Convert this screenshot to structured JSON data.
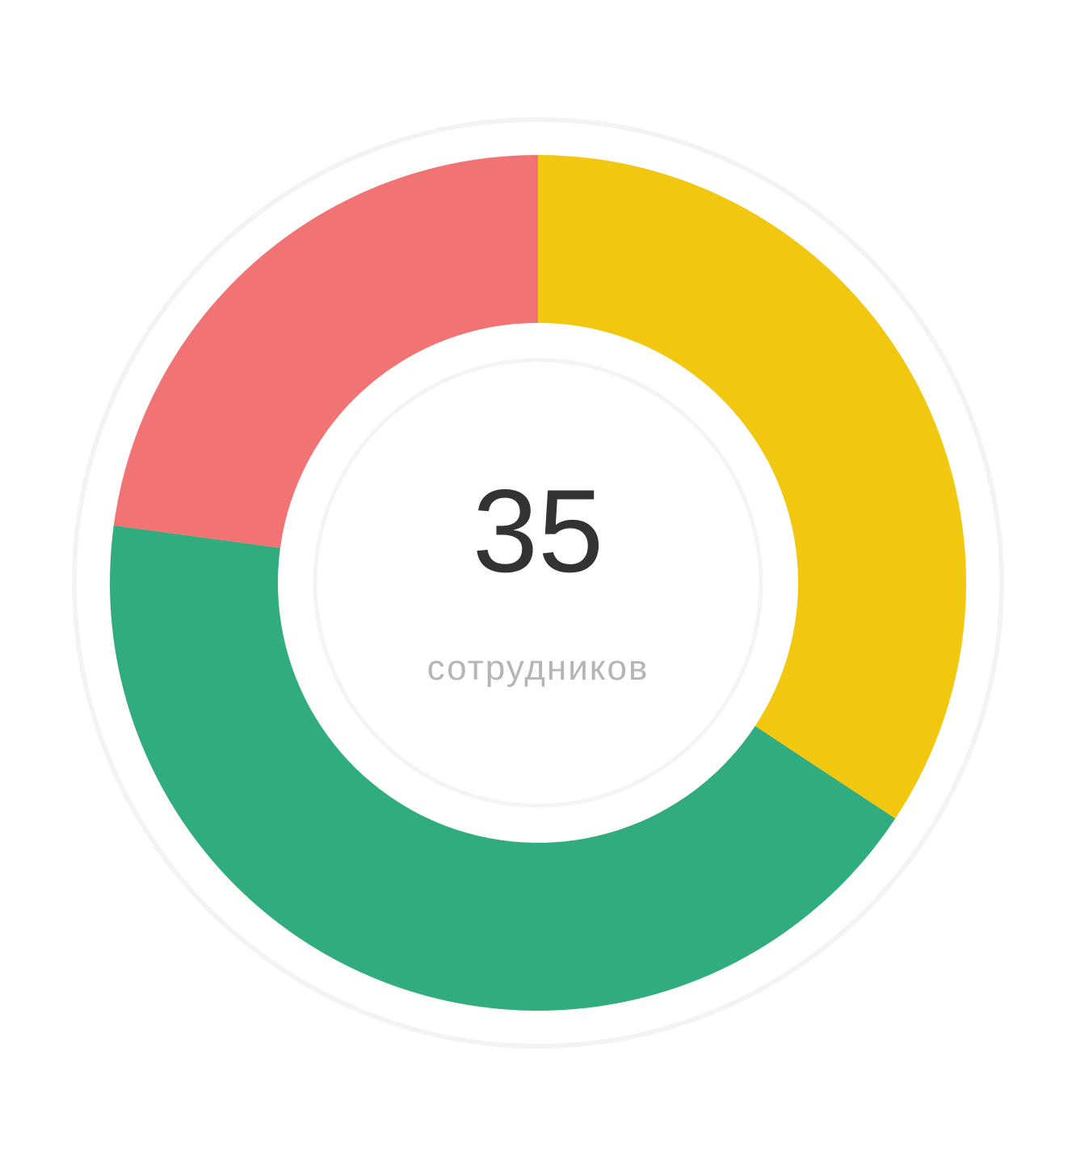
{
  "chart_data": {
    "type": "pie",
    "donut": true,
    "categories": [
      "",
      "",
      ""
    ],
    "values": [
      12,
      15,
      8
    ],
    "colors": [
      "#f2c70f",
      "#30ac7f",
      "#f27373"
    ],
    "start_angle_deg": 0,
    "total_label": "35",
    "caption": "сотрудников",
    "legend": "none"
  }
}
